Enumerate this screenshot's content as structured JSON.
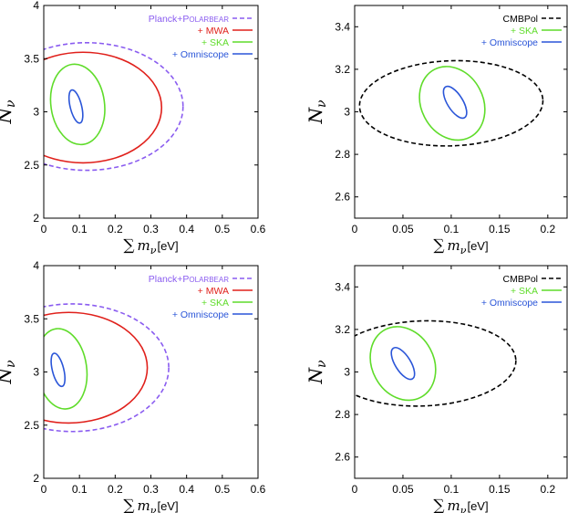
{
  "chart_data": [
    {
      "type": "contour",
      "ylabel": "N_ν",
      "ylabel_main": "N",
      "ylabel_sub": "ν",
      "xlabel": "∑ m_ν [eV]",
      "xlabel_sigma": "∑",
      "xlabel_main": "m",
      "xlabel_sub": "ν",
      "xlabel_unit": "[eV]",
      "xlim": [
        0,
        0.6
      ],
      "ylim": [
        2,
        4
      ],
      "xticks": [
        0,
        0.1,
        0.2,
        0.3,
        0.4,
        0.5,
        0.6
      ],
      "xtick_labels": [
        "0",
        "0.1",
        "0.2",
        "0.3",
        "0.4",
        "0.5",
        "0.6"
      ],
      "yticks": [
        2,
        2.5,
        3,
        3.5,
        4
      ],
      "ytick_labels": [
        "2",
        "2.5",
        "3",
        "3.5",
        "4"
      ],
      "legend_position": "top-right",
      "series": [
        {
          "name": "Planck+POLARBEAR",
          "label_main": "Planck+P",
          "label_smallcaps": "OLARBEAR",
          "color": "#8a5cf0",
          "dash": true,
          "cx": 0.12,
          "cy": 3.05,
          "rx": 0.27,
          "ry": 0.6,
          "angle": 0
        },
        {
          "name": "+ MWA",
          "label_main": "+ MWA",
          "color": "#e0201b",
          "dash": false,
          "cx": 0.11,
          "cy": 3.04,
          "rx": 0.22,
          "ry": 0.52,
          "angle": 0
        },
        {
          "name": "+ SKA",
          "label_main": "+ SKA",
          "color": "#5fdc2a",
          "dash": false,
          "cx": 0.095,
          "cy": 3.07,
          "rx": 0.075,
          "ry": 0.38,
          "angle": 8
        },
        {
          "name": "+ Omniscope",
          "label_main": "+ Omniscope",
          "color": "#2a55d8",
          "dash": false,
          "cx": 0.09,
          "cy": 3.05,
          "rx": 0.016,
          "ry": 0.16,
          "angle": 14
        }
      ]
    },
    {
      "type": "contour",
      "ylabel": "N_ν",
      "ylabel_main": "N",
      "ylabel_sub": "ν",
      "xlabel": "∑ m_ν [eV]",
      "xlabel_sigma": "∑",
      "xlabel_main": "m",
      "xlabel_sub": "ν",
      "xlabel_unit": "[eV]",
      "xlim": [
        0,
        0.22
      ],
      "ylim": [
        2.5,
        3.5
      ],
      "xticks": [
        0,
        0.05,
        0.1,
        0.15,
        0.2
      ],
      "xtick_labels": [
        "0",
        "0.05",
        "0.1",
        "0.15",
        "0.2"
      ],
      "yticks": [
        2.6,
        2.8,
        3,
        3.2,
        3.4
      ],
      "ytick_labels": [
        "2.6",
        "2.8",
        "3",
        "3.2",
        "3.4"
      ],
      "legend_position": "top-right",
      "series": [
        {
          "name": "CMBPol",
          "label_main": "CMBPol",
          "color": "#000000",
          "dash": true,
          "cx": 0.1,
          "cy": 3.04,
          "rx": 0.095,
          "ry": 0.2,
          "angle": 2
        },
        {
          "name": "+ SKA",
          "label_main": "+ SKA",
          "color": "#5fdc2a",
          "dash": false,
          "cx": 0.101,
          "cy": 3.04,
          "rx": 0.032,
          "ry": 0.18,
          "angle": 28
        },
        {
          "name": "+ Omniscope",
          "label_main": "+ Omniscope",
          "color": "#2a55d8",
          "dash": false,
          "cx": 0.104,
          "cy": 3.045,
          "rx": 0.008,
          "ry": 0.085,
          "angle": 32
        }
      ]
    },
    {
      "type": "contour",
      "ylabel": "N_ν",
      "ylabel_main": "N",
      "ylabel_sub": "ν",
      "xlabel": "∑ m_ν [eV]",
      "xlabel_sigma": "∑",
      "xlabel_main": "m",
      "xlabel_sub": "ν",
      "xlabel_unit": "[eV]",
      "xlim": [
        0,
        0.6
      ],
      "ylim": [
        2,
        4
      ],
      "xticks": [
        0,
        0.1,
        0.2,
        0.3,
        0.4,
        0.5,
        0.6
      ],
      "xtick_labels": [
        "0",
        "0.1",
        "0.2",
        "0.3",
        "0.4",
        "0.5",
        "0.6"
      ],
      "yticks": [
        2,
        2.5,
        3,
        3.5,
        4
      ],
      "ytick_labels": [
        "2",
        "2.5",
        "3",
        "3.5",
        "4"
      ],
      "legend_position": "top-right",
      "series": [
        {
          "name": "Planck+POLARBEAR",
          "label_main": "Planck+P",
          "label_smallcaps": "OLARBEAR",
          "color": "#8a5cf0",
          "dash": true,
          "cx": 0.08,
          "cy": 3.04,
          "rx": 0.27,
          "ry": 0.6,
          "angle": 0
        },
        {
          "name": "+ MWA",
          "label_main": "+ MWA",
          "color": "#e0201b",
          "dash": false,
          "cx": 0.07,
          "cy": 3.04,
          "rx": 0.22,
          "ry": 0.52,
          "angle": 0
        },
        {
          "name": "+ SKA",
          "label_main": "+ SKA",
          "color": "#5fdc2a",
          "dash": false,
          "cx": 0.05,
          "cy": 3.03,
          "rx": 0.07,
          "ry": 0.38,
          "angle": 8
        },
        {
          "name": "+ Omniscope",
          "label_main": "+ Omniscope",
          "color": "#2a55d8",
          "dash": false,
          "cx": 0.04,
          "cy": 3.02,
          "rx": 0.016,
          "ry": 0.16,
          "angle": 14
        }
      ]
    },
    {
      "type": "contour",
      "ylabel": "N_ν",
      "ylabel_main": "N",
      "ylabel_sub": "ν",
      "xlabel": "∑ m_ν [eV]",
      "xlabel_sigma": "∑",
      "xlabel_main": "m",
      "xlabel_sub": "ν",
      "xlabel_unit": "[eV]",
      "xlim": [
        0,
        0.22
      ],
      "ylim": [
        2.5,
        3.5
      ],
      "xticks": [
        0,
        0.05,
        0.1,
        0.15,
        0.2
      ],
      "xtick_labels": [
        "0",
        "0.05",
        "0.1",
        "0.15",
        "0.2"
      ],
      "yticks": [
        2.6,
        2.8,
        3,
        3.2,
        3.4
      ],
      "ytick_labels": [
        "2.6",
        "2.8",
        "3",
        "3.2",
        "3.4"
      ],
      "legend_position": "top-right",
      "series": [
        {
          "name": "CMBPol",
          "label_main": "CMBPol",
          "color": "#000000",
          "dash": true,
          "cx": 0.07,
          "cy": 3.04,
          "rx": 0.097,
          "ry": 0.2,
          "angle": 2
        },
        {
          "name": "+ SKA",
          "label_main": "+ SKA",
          "color": "#5fdc2a",
          "dash": false,
          "cx": 0.05,
          "cy": 3.04,
          "rx": 0.032,
          "ry": 0.18,
          "angle": 28
        },
        {
          "name": "+ Omniscope",
          "label_main": "+ Omniscope",
          "color": "#2a55d8",
          "dash": false,
          "cx": 0.05,
          "cy": 3.04,
          "rx": 0.008,
          "ry": 0.085,
          "angle": 32
        }
      ]
    }
  ]
}
